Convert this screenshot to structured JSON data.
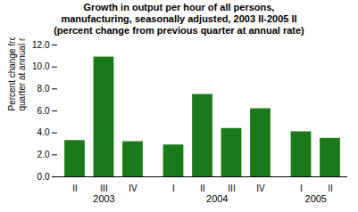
{
  "chart_data": {
    "type": "bar",
    "title": "Growth in output per hour of all persons,\nmanufacturing, seasonally adjusted, 2003 II-2005 II\n(percent change from previous quarter at annual rate)",
    "ylabel": "Percent change from previous\nquarter at annual rate",
    "categories": [
      "II",
      "III",
      "IV",
      "I",
      "II",
      "III",
      "IV",
      "I",
      "II"
    ],
    "values": [
      3.3,
      10.9,
      3.2,
      2.9,
      7.5,
      4.4,
      6.2,
      4.1,
      3.5
    ],
    "groups": [
      {
        "label": "2003",
        "size": 3
      },
      {
        "label": "2004",
        "size": 4
      },
      {
        "label": "2005",
        "size": 2
      }
    ],
    "color": "#1a7a1a",
    "ylim": [
      0,
      12.0
    ],
    "yticks": [
      {
        "value": 0,
        "label": "0.0"
      },
      {
        "value": 2,
        "label": "2.0"
      },
      {
        "value": 4,
        "label": "4.0"
      },
      {
        "value": 6,
        "label": "6.0"
      },
      {
        "value": 8,
        "label": "8.0"
      },
      {
        "value": 10,
        "label": "10.0"
      },
      {
        "value": 12,
        "label": "12.0"
      }
    ],
    "grid": false
  }
}
